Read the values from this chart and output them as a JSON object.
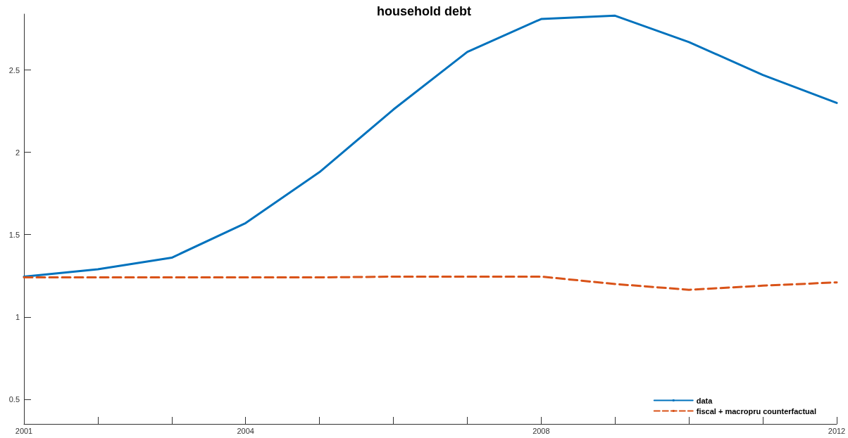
{
  "chart_data": {
    "type": "line",
    "title": "household debt",
    "categories": [
      "2001",
      null,
      null,
      "2004",
      null,
      null,
      null,
      "2008",
      null,
      null,
      null,
      "2012"
    ],
    "series": [
      {
        "name": "data",
        "color": "#0072bd",
        "line_style": "solid",
        "values": [
          1.245,
          1.29,
          1.36,
          1.57,
          1.88,
          2.26,
          2.61,
          2.81,
          2.83,
          2.67,
          2.47,
          2.3
        ]
      },
      {
        "name": "fiscal + macropru counterfactual",
        "color": "#d95319",
        "line_style": "dashed",
        "values": [
          1.24,
          1.24,
          1.24,
          1.24,
          1.24,
          1.245,
          1.245,
          1.245,
          1.2,
          1.165,
          1.19,
          1.21
        ]
      }
    ],
    "ylim": [
      0.35,
      2.84
    ],
    "yticks": [
      0.5,
      1,
      1.5,
      2,
      2.5
    ],
    "grid": false,
    "legend": "bottom right",
    "marker": "none"
  }
}
